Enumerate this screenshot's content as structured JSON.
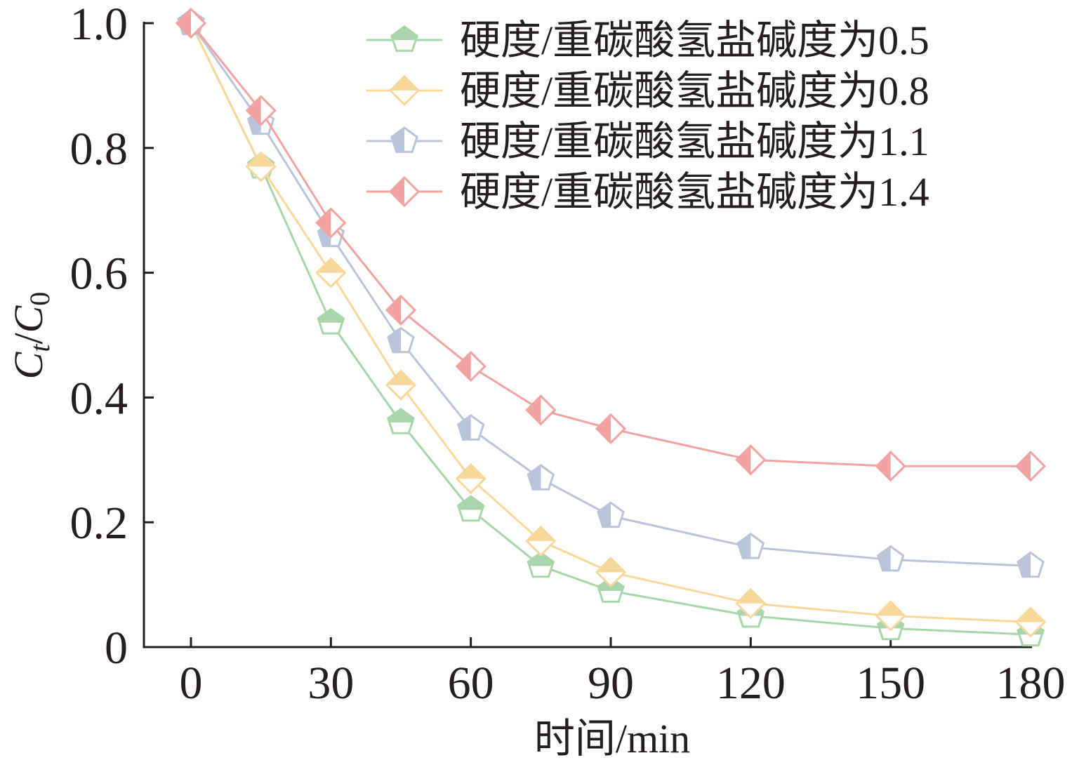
{
  "chart_data": {
    "type": "line",
    "title": "",
    "xlabel": "时间/min",
    "ylabel": {
      "main": "C",
      "sub_t": "t",
      "slash": "/",
      "main2": "C",
      "sub_0": "0"
    },
    "x": [
      0,
      15,
      30,
      45,
      60,
      75,
      90,
      120,
      150,
      180
    ],
    "xlim": [
      -10,
      180
    ],
    "ylim": [
      0,
      1.0
    ],
    "xticks": [
      0,
      30,
      60,
      90,
      120,
      150,
      180
    ],
    "xtick_labels": [
      "0",
      "30",
      "60",
      "90",
      "120",
      "150",
      "180"
    ],
    "yticks": [
      0,
      0.2,
      0.4,
      0.6,
      0.8,
      1.0
    ],
    "ytick_labels": [
      "0",
      "0.2",
      "0.4",
      "0.6",
      "0.8",
      "1.0"
    ],
    "grid": false,
    "legend_position": "top-right",
    "series": [
      {
        "name": "硬度/重碳酸氢盐碱度为0.5",
        "marker": "pentagon",
        "color": "#a8d5a9",
        "values": [
          1.0,
          0.77,
          0.52,
          0.36,
          0.22,
          0.13,
          0.09,
          0.05,
          0.03,
          0.02
        ]
      },
      {
        "name": "硬度/重碳酸氢盐碱度为0.8",
        "marker": "diamond",
        "color": "#f8d89a",
        "values": [
          1.0,
          0.77,
          0.6,
          0.42,
          0.27,
          0.17,
          0.12,
          0.07,
          0.05,
          0.04
        ]
      },
      {
        "name": "硬度/重碳酸氢盐碱度为1.1",
        "marker": "pentagon-half",
        "color": "#b9c4d9",
        "values": [
          1.0,
          0.84,
          0.66,
          0.49,
          0.35,
          0.27,
          0.21,
          0.16,
          0.14,
          0.13
        ]
      },
      {
        "name": "硬度/重碳酸氢盐碱度为1.4",
        "marker": "diamond-half",
        "color": "#f2a2a0",
        "values": [
          1.0,
          0.86,
          0.68,
          0.54,
          0.45,
          0.38,
          0.35,
          0.3,
          0.29,
          0.29
        ]
      }
    ]
  }
}
